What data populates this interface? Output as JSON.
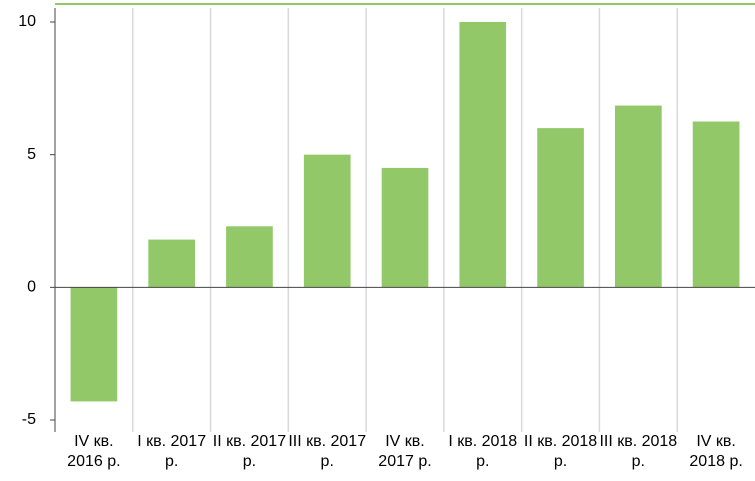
{
  "chart_data": {
    "type": "bar",
    "categories": [
      "IV кв. 2016 р.",
      "I кв. 2017 р.",
      "II кв. 2017 р.",
      "III кв. 2017 р.",
      "IV кв. 2017 р.",
      "I кв. 2018 р.",
      "II кв. 2018 р.",
      "III кв. 2018 р.",
      "IV кв. 2018 р."
    ],
    "values": [
      -4.3,
      1.8,
      2.3,
      5.0,
      4.5,
      10.0,
      6.0,
      6.85,
      6.25
    ],
    "color": "#92c867",
    "ylim": [
      -5,
      10
    ],
    "yticks": [
      -5,
      0,
      5,
      10
    ],
    "grid": false
  }
}
